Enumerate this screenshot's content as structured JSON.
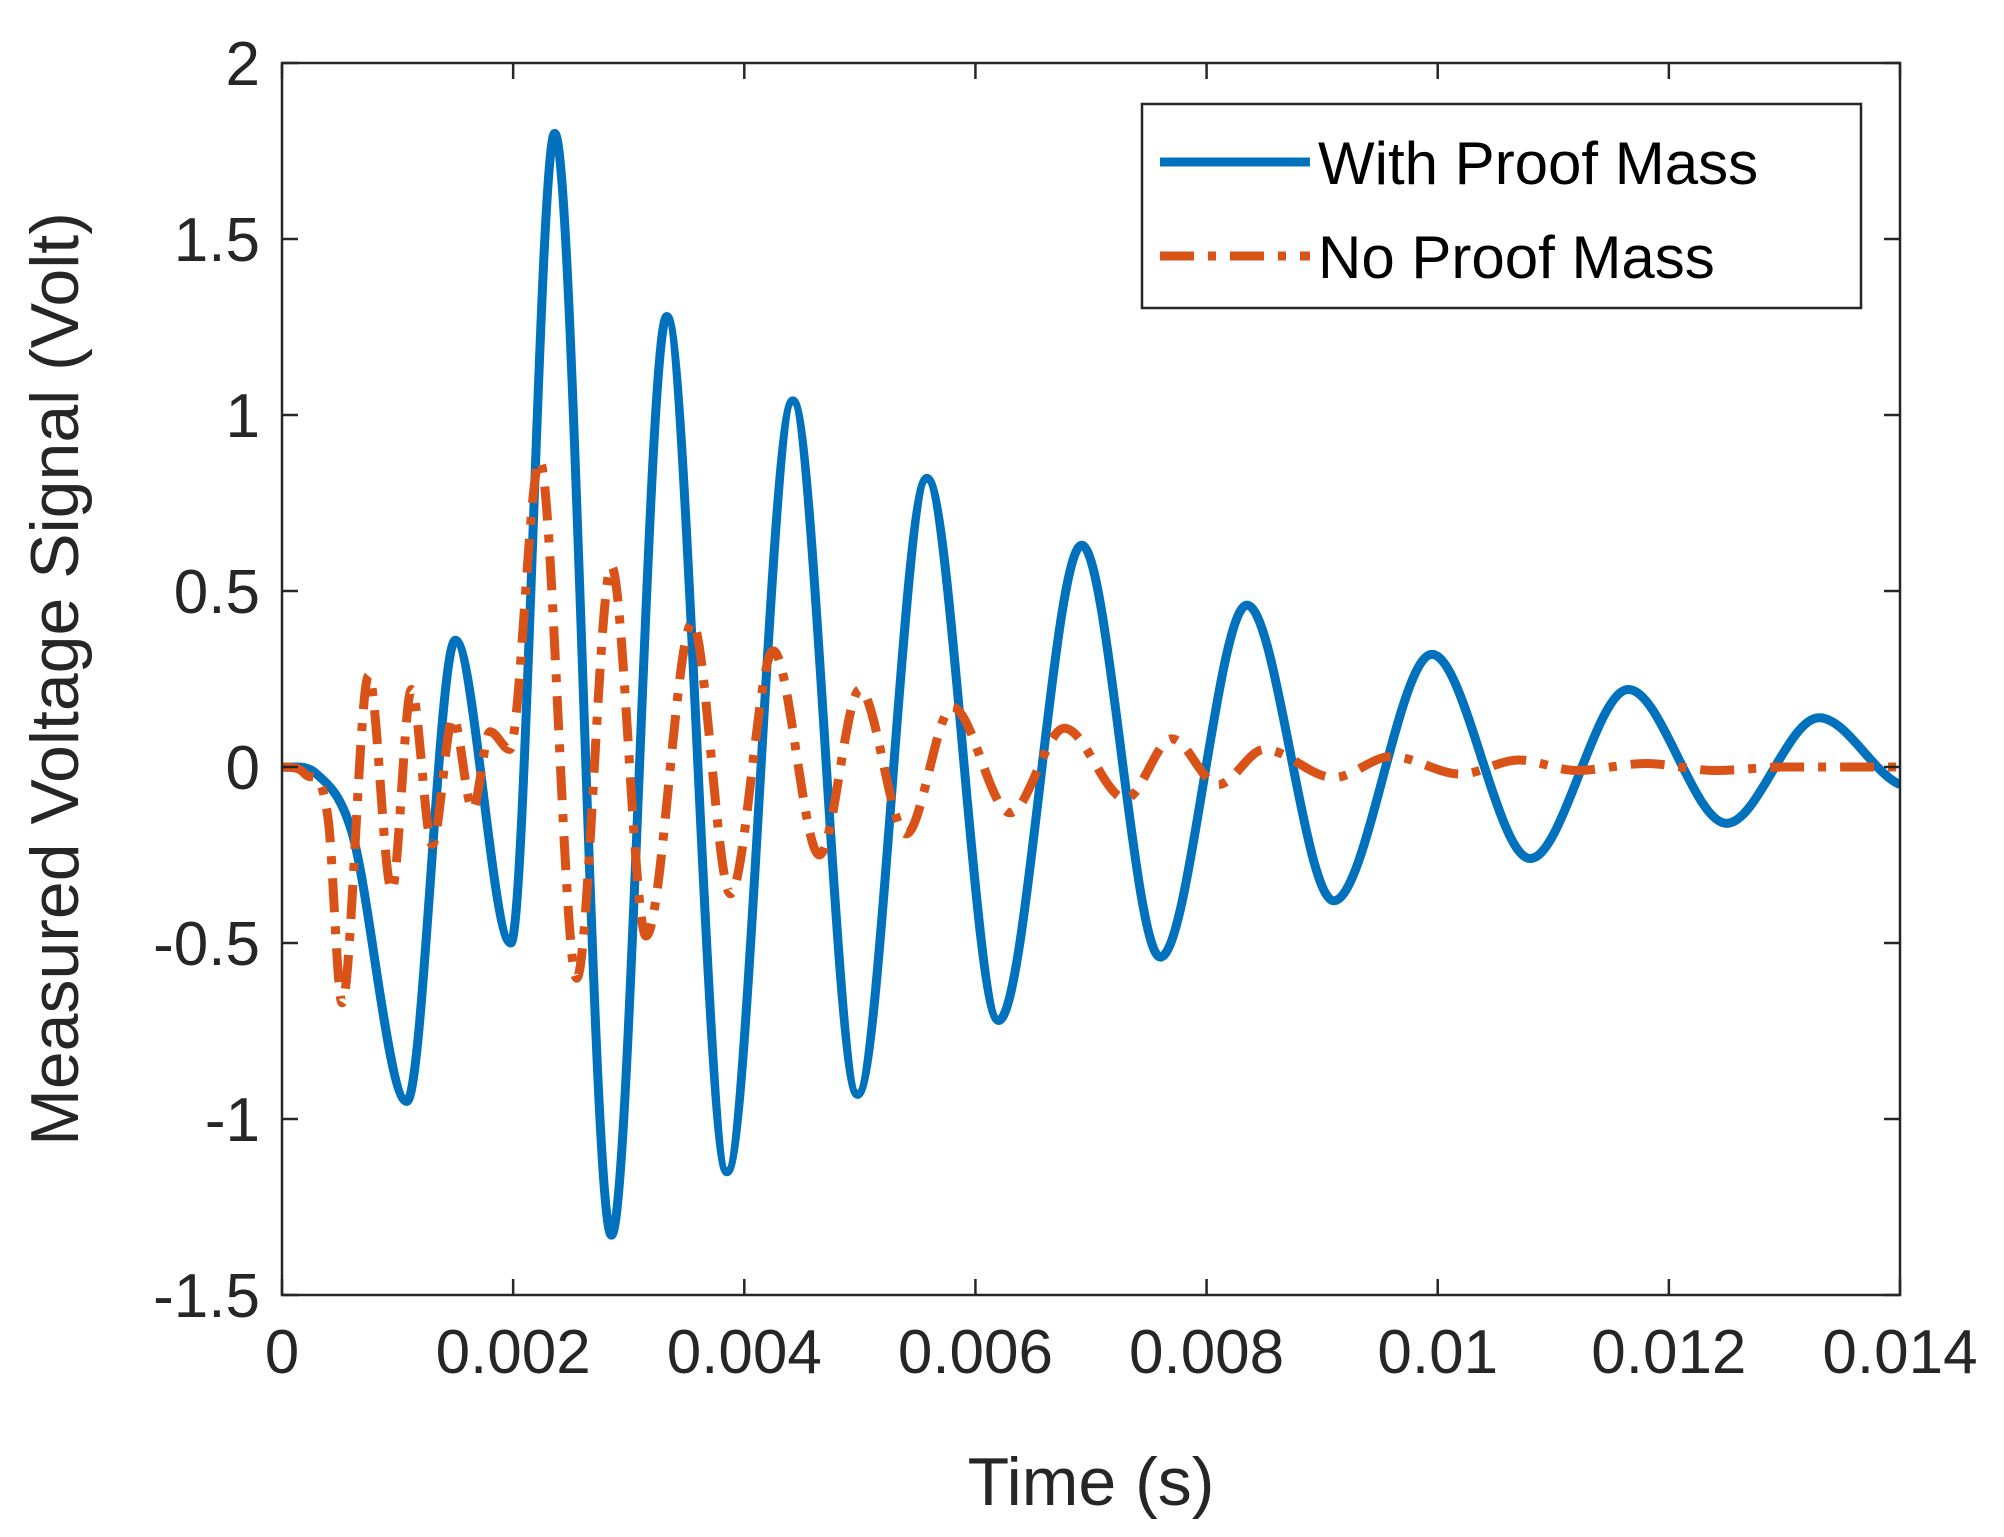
{
  "chart_data": {
    "type": "line",
    "title": "",
    "xlabel": "Time (s)",
    "ylabel": "Measured Voltage Signal (Volt)",
    "xlim": [
      0,
      0.014
    ],
    "ylim": [
      -1.5,
      2
    ],
    "grid": false,
    "legend_position": "top-right",
    "x_ticks": [
      0,
      0.002,
      0.004,
      0.006,
      0.008,
      0.01,
      0.012,
      0.014
    ],
    "x_tick_labels": [
      "0",
      "0.002",
      "0.004",
      "0.006",
      "0.008",
      "0.01",
      "0.012",
      "0.014"
    ],
    "y_ticks": [
      -1.5,
      -1,
      -0.5,
      0,
      0.5,
      1,
      1.5,
      2
    ],
    "y_tick_labels": [
      "-1.5",
      "-1",
      "-0.5",
      "0",
      "0.5",
      "1",
      "1.5",
      "2"
    ],
    "series": [
      {
        "name": "With Proof Mass",
        "color": "#0072BD",
        "style": "solid",
        "x": [
          0,
          0.0003,
          0.0006,
          0.00108,
          0.0015,
          0.00198,
          0.00236,
          0.00285,
          0.00333,
          0.00385,
          0.00442,
          0.00498,
          0.00558,
          0.0062,
          0.00692,
          0.0076,
          0.00835,
          0.0091,
          0.00995,
          0.0108,
          0.01165,
          0.0125,
          0.0133,
          0.014
        ],
        "values": [
          0,
          -0.02,
          -0.18,
          -0.95,
          0.36,
          -0.5,
          1.8,
          -1.33,
          1.28,
          -1.15,
          1.04,
          -0.93,
          0.82,
          -0.72,
          0.63,
          -0.54,
          0.46,
          -0.38,
          0.32,
          -0.26,
          0.22,
          -0.16,
          0.14,
          -0.05
        ]
      },
      {
        "name": "No Proof Mass",
        "color": "#D95319",
        "style": "dash-dot",
        "x": [
          0,
          0.0002,
          0.0004,
          0.00052,
          0.00075,
          0.00095,
          0.00112,
          0.0013,
          0.00148,
          0.00165,
          0.0018,
          0.00197,
          0.00223,
          0.00255,
          0.00285,
          0.00315,
          0.00355,
          0.00388,
          0.00425,
          0.00465,
          0.005,
          0.0054,
          0.0058,
          0.0063,
          0.00677,
          0.0073,
          0.0077,
          0.0081,
          0.0085,
          0.0091,
          0.0096,
          0.0102,
          0.0107,
          0.0112,
          0.0118,
          0.0124,
          0.013,
          0.014
        ],
        "values": [
          0,
          -0.02,
          -0.15,
          -0.67,
          0.26,
          -0.35,
          0.22,
          -0.22,
          0.14,
          -0.12,
          0.1,
          0.05,
          0.87,
          -0.6,
          0.57,
          -0.48,
          0.41,
          -0.36,
          0.33,
          -0.25,
          0.22,
          -0.19,
          0.17,
          -0.13,
          0.11,
          -0.09,
          0.08,
          -0.05,
          0.05,
          -0.03,
          0.03,
          -0.02,
          0.02,
          -0.01,
          0.01,
          -0.01,
          0.0,
          0.0
        ]
      }
    ]
  }
}
